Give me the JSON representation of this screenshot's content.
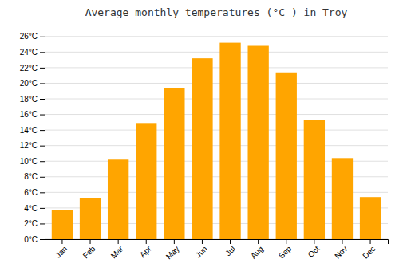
{
  "chart_data": {
    "type": "bar",
    "title": "Average monthly temperatures (°C ) in Troy",
    "categories": [
      "Jan",
      "Feb",
      "Mar",
      "Apr",
      "May",
      "Jun",
      "Jul",
      "Aug",
      "Sep",
      "Oct",
      "Nov",
      "Dec"
    ],
    "values": [
      3.7,
      5.3,
      10.2,
      14.9,
      19.4,
      23.2,
      25.2,
      24.8,
      21.4,
      15.3,
      10.4,
      5.4
    ],
    "color": "#FFA500",
    "ylim": [
      0,
      27
    ],
    "yticks": [
      {
        "value": 0,
        "label": "0°C"
      },
      {
        "value": 2,
        "label": "2°C"
      },
      {
        "value": 4,
        "label": "4°C"
      },
      {
        "value": 6,
        "label": "6°C"
      },
      {
        "value": 8,
        "label": "8°C"
      },
      {
        "value": 10,
        "label": "10°C"
      },
      {
        "value": 12,
        "label": "12°C"
      },
      {
        "value": 14,
        "label": "14°C"
      },
      {
        "value": 16,
        "label": "16°C"
      },
      {
        "value": 18,
        "label": "18°C"
      },
      {
        "value": 20,
        "label": "20°C"
      },
      {
        "value": 22,
        "label": "22°C"
      },
      {
        "value": 24,
        "label": "24°C"
      },
      {
        "value": 26,
        "label": "26°C"
      }
    ],
    "grid": true
  }
}
